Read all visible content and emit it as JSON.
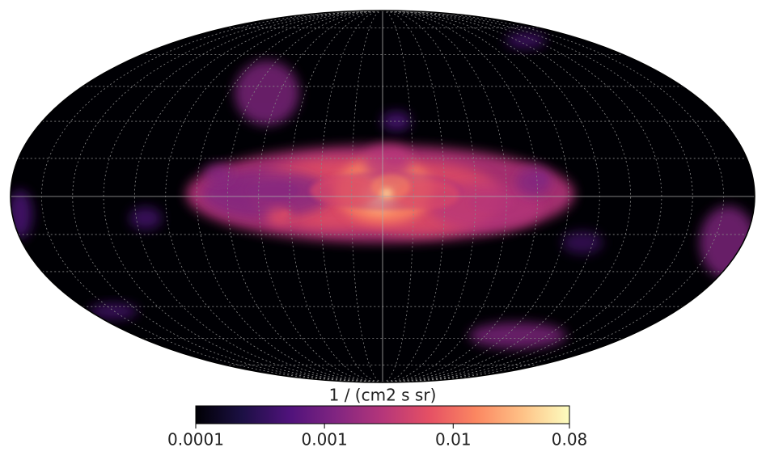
{
  "colorbar": {
    "label": "1 / (cm2 s sr)",
    "lim": [
      0.0001,
      0.08
    ],
    "ticks": [
      0.0001,
      0.001,
      0.01,
      0.08
    ],
    "scale": "log",
    "colormap": "magma"
  }
}
